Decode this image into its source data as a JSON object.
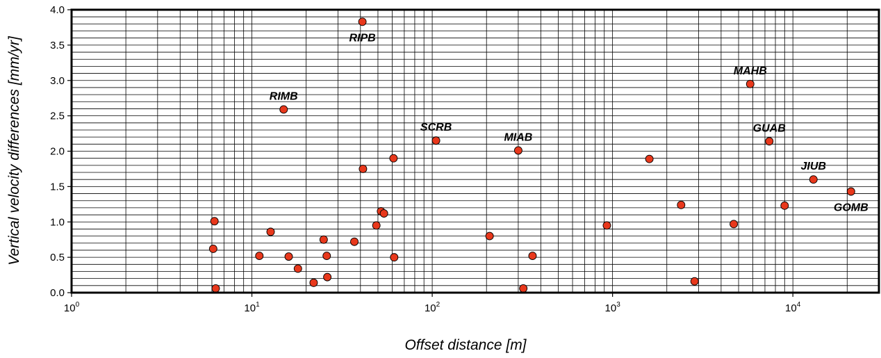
{
  "chart_data": {
    "type": "scatter",
    "title": "",
    "xlabel": "Offset distance [m]",
    "ylabel": "Vertical velocity differences [mm/yr]",
    "xscale": "log",
    "xlim": [
      1,
      30000
    ],
    "ylim": [
      0,
      4.0
    ],
    "grid": true,
    "point_color": "#e8381c",
    "x_ticks": [
      {
        "base": "10",
        "exp": "0",
        "value": 1
      },
      {
        "base": "10",
        "exp": "1",
        "value": 10
      },
      {
        "base": "10",
        "exp": "2",
        "value": 100
      },
      {
        "base": "10",
        "exp": "3",
        "value": 1000
      },
      {
        "base": "10",
        "exp": "4",
        "value": 10000
      }
    ],
    "y_ticks": [
      "0.0",
      "0.5",
      "1.0",
      "1.5",
      "2.0",
      "2.5",
      "3.0",
      "3.5",
      "4.0"
    ],
    "points": [
      {
        "x": 6.1,
        "y": 0.62
      },
      {
        "x": 6.2,
        "y": 1.01
      },
      {
        "x": 6.3,
        "y": 0.06
      },
      {
        "x": 11,
        "y": 0.52
      },
      {
        "x": 12.7,
        "y": 0.86
      },
      {
        "x": 15,
        "y": 2.59,
        "label": "RIMB"
      },
      {
        "x": 16,
        "y": 0.51
      },
      {
        "x": 18,
        "y": 0.34
      },
      {
        "x": 22,
        "y": 0.14
      },
      {
        "x": 25,
        "y": 0.75
      },
      {
        "x": 26,
        "y": 0.52
      },
      {
        "x": 26.2,
        "y": 0.22
      },
      {
        "x": 37,
        "y": 0.72
      },
      {
        "x": 41,
        "y": 3.83,
        "label": "RIPB"
      },
      {
        "x": 41.3,
        "y": 1.75
      },
      {
        "x": 49,
        "y": 0.95
      },
      {
        "x": 52,
        "y": 1.15
      },
      {
        "x": 54,
        "y": 1.12
      },
      {
        "x": 61,
        "y": 1.9
      },
      {
        "x": 61.5,
        "y": 0.5
      },
      {
        "x": 105,
        "y": 2.15,
        "label": "SCRB"
      },
      {
        "x": 208,
        "y": 0.8
      },
      {
        "x": 300,
        "y": 2.01,
        "label": "MIAB"
      },
      {
        "x": 320,
        "y": 0.06
      },
      {
        "x": 360,
        "y": 0.52
      },
      {
        "x": 930,
        "y": 0.95
      },
      {
        "x": 1600,
        "y": 1.89
      },
      {
        "x": 2400,
        "y": 1.24
      },
      {
        "x": 2850,
        "y": 0.16
      },
      {
        "x": 4700,
        "y": 0.97
      },
      {
        "x": 5800,
        "y": 2.95,
        "label": "MAHB"
      },
      {
        "x": 7400,
        "y": 2.14,
        "label": "GUAB"
      },
      {
        "x": 9000,
        "y": 1.23
      },
      {
        "x": 13000,
        "y": 1.6,
        "label": "JIUB"
      },
      {
        "x": 21000,
        "y": 1.43,
        "label": "GOMB"
      }
    ]
  }
}
